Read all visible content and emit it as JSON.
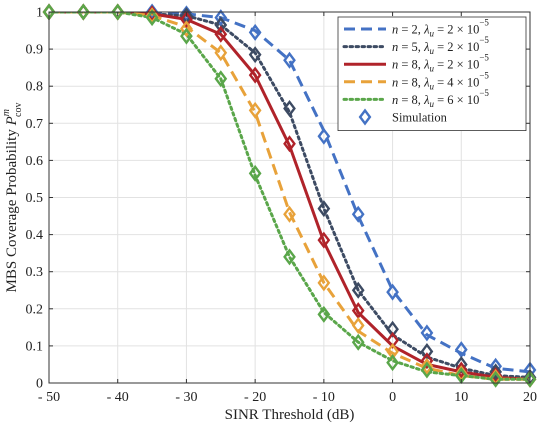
{
  "chart_data": {
    "type": "line",
    "xlabel": "SINR Threshold (dB)",
    "ylabel_main": "MBS Coverage Probability ",
    "ylabel_symbol": "P",
    "ylabel_sup": "m",
    "ylabel_sub": "cov",
    "xlim": [
      -50,
      20
    ],
    "ylim": [
      0,
      1
    ],
    "xticks": [
      -50,
      -40,
      -30,
      -20,
      -10,
      0,
      10,
      20
    ],
    "xtick_labels": [
      "- 50",
      "- 40",
      "- 30",
      "- 20",
      "- 10",
      "0",
      "10",
      "20"
    ],
    "yticks": [
      0,
      0.1,
      0.2,
      0.3,
      0.4,
      0.5,
      0.6,
      0.7,
      0.8,
      0.9,
      1
    ],
    "ytick_labels": [
      "0",
      "0.1",
      "0.2",
      "0.3",
      "0.4",
      "0.5",
      "0.6",
      "0.7",
      "0.8",
      "0.9",
      "1"
    ],
    "grid": true,
    "legend_position": "top-right",
    "series": [
      {
        "name": "n = 2, λu = 2 × 10−5",
        "legend": {
          "n": "2",
          "lambda": "2",
          "exp": "−5"
        },
        "color": "#4472c4",
        "style": "dashed",
        "sim_marker": "diamond",
        "x": [
          -50,
          -45,
          -40,
          -35,
          -30,
          -25,
          -20,
          -15,
          -10,
          -5,
          0,
          5,
          10,
          15,
          20
        ],
        "analysis": [
          1.0,
          1.0,
          1.0,
          1.0,
          0.995,
          0.985,
          0.95,
          0.87,
          0.68,
          0.45,
          0.25,
          0.13,
          0.08,
          0.04,
          0.03
        ],
        "simulation": [
          1.0,
          1.0,
          1.0,
          1.0,
          0.995,
          0.985,
          0.945,
          0.87,
          0.665,
          0.455,
          0.245,
          0.135,
          0.09,
          0.045,
          0.035
        ]
      },
      {
        "name": "n = 5, λu = 2 × 10−5",
        "legend": {
          "n": "5",
          "lambda": "2",
          "exp": "−5"
        },
        "color": "#3d4b63",
        "style": "dotted",
        "sim_marker": "diamond",
        "x": [
          -50,
          -45,
          -40,
          -35,
          -30,
          -25,
          -20,
          -15,
          -10,
          -5,
          0,
          5,
          10,
          15,
          20
        ],
        "analysis": [
          1.0,
          1.0,
          1.0,
          0.995,
          0.99,
          0.965,
          0.89,
          0.73,
          0.47,
          0.25,
          0.13,
          0.07,
          0.04,
          0.02,
          0.015
        ],
        "simulation": [
          1.0,
          1.0,
          1.0,
          0.995,
          0.99,
          0.965,
          0.885,
          0.74,
          0.47,
          0.25,
          0.145,
          0.085,
          0.05,
          0.03,
          0.015
        ]
      },
      {
        "name": "n = 8, λu = 2 × 10−5",
        "legend": {
          "n": "8",
          "lambda": "2",
          "exp": "−5"
        },
        "color": "#b0232a",
        "style": "solid",
        "sim_marker": "diamond",
        "x": [
          -50,
          -45,
          -40,
          -35,
          -30,
          -25,
          -20,
          -15,
          -10,
          -5,
          0,
          5,
          10,
          15,
          20
        ],
        "analysis": [
          1.0,
          1.0,
          1.0,
          0.995,
          0.98,
          0.94,
          0.83,
          0.64,
          0.38,
          0.19,
          0.1,
          0.05,
          0.03,
          0.015,
          0.01
        ],
        "simulation": [
          1.0,
          1.0,
          1.0,
          0.995,
          0.98,
          0.94,
          0.83,
          0.645,
          0.385,
          0.195,
          0.115,
          0.06,
          0.035,
          0.02,
          0.01
        ]
      },
      {
        "name": "n = 8, λu = 4 × 10−5",
        "legend": {
          "n": "8",
          "lambda": "4",
          "exp": "−5"
        },
        "color": "#e8a23a",
        "style": "dashed",
        "sim_marker": "diamond",
        "x": [
          -50,
          -45,
          -40,
          -35,
          -30,
          -25,
          -20,
          -15,
          -10,
          -5,
          0,
          5,
          10,
          15,
          20
        ],
        "analysis": [
          1.0,
          1.0,
          1.0,
          0.99,
          0.96,
          0.89,
          0.73,
          0.46,
          0.27,
          0.14,
          0.08,
          0.04,
          0.02,
          0.01,
          0.01
        ],
        "simulation": [
          1.0,
          1.0,
          1.0,
          0.99,
          0.955,
          0.89,
          0.735,
          0.455,
          0.27,
          0.155,
          0.085,
          0.045,
          0.025,
          0.015,
          0.01
        ]
      },
      {
        "name": "n = 8, λu = 6 × 10−5",
        "legend": {
          "n": "8",
          "lambda": "6",
          "exp": "−5"
        },
        "color": "#5aa64a",
        "style": "dotted",
        "sim_marker": "diamond",
        "x": [
          -50,
          -45,
          -40,
          -35,
          -30,
          -25,
          -20,
          -15,
          -10,
          -5,
          0,
          5,
          10,
          15,
          20
        ],
        "analysis": [
          1.0,
          1.0,
          1.0,
          0.985,
          0.94,
          0.82,
          0.56,
          0.34,
          0.19,
          0.11,
          0.06,
          0.03,
          0.02,
          0.01,
          0.01
        ],
        "simulation": [
          1.0,
          1.0,
          1.0,
          0.985,
          0.935,
          0.82,
          0.565,
          0.34,
          0.185,
          0.11,
          0.055,
          0.035,
          0.02,
          0.01,
          0.01
        ]
      }
    ],
    "legend_sim_label": "Simulation"
  }
}
